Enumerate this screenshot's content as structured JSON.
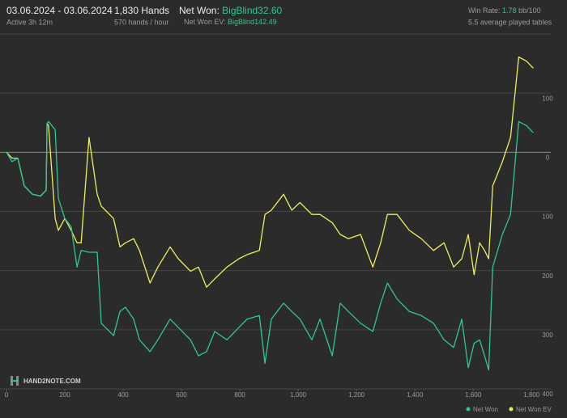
{
  "header": {
    "date_range": "03.06.2024 - 03.06.2024",
    "active": "Active 3h 12m",
    "hands": "1,830 Hands",
    "hands_per_hour": "570 hands / hour",
    "net_won_label": "Net Won:",
    "net_won_value": "BigBlind32.60",
    "net_won_ev_label": "Net Won  EV:",
    "net_won_ev_value": "BigBlind142.49",
    "win_rate_label": "Win Rate:",
    "win_rate_value": "1.78",
    "win_rate_unit": "bb/100",
    "tables": "5.5 average played tables",
    "watermark": "HAND2NOTE.COM"
  },
  "chart_data": {
    "type": "line",
    "x": [
      0,
      19,
      39,
      61,
      89,
      117,
      136,
      139,
      144,
      167,
      178,
      200,
      222,
      242,
      256,
      283,
      311,
      325,
      367,
      389,
      408,
      436,
      456,
      492,
      519,
      561,
      589,
      631,
      658,
      686,
      714,
      756,
      797,
      825,
      867,
      886,
      908,
      950,
      978,
      1006,
      1047,
      1075,
      1117,
      1144,
      1172,
      1214,
      1256,
      1283,
      1306,
      1339,
      1381,
      1422,
      1464,
      1500,
      1533,
      1561,
      1583,
      1603,
      1622,
      1639,
      1653,
      1667,
      1700,
      1728,
      1756,
      1783,
      1806
    ],
    "series": [
      {
        "name": "Net Won",
        "color": "#2fc98c",
        "values": [
          0,
          -16,
          -10,
          -57,
          -71,
          -74,
          -64,
          49,
          52,
          38,
          -78,
          -112,
          -126,
          -194,
          -166,
          -169,
          -169,
          -289,
          -310,
          -269,
          -262,
          -282,
          -317,
          -337,
          -317,
          -282,
          -296,
          -317,
          -344,
          -337,
          -303,
          -317,
          -296,
          -282,
          -276,
          -357,
          -282,
          -255,
          -269,
          -282,
          -317,
          -282,
          -344,
          -255,
          -269,
          -289,
          -303,
          -255,
          -221,
          -248,
          -269,
          -276,
          -289,
          -317,
          -330,
          -282,
          -364,
          -323,
          -317,
          -344,
          -368,
          -194,
          -139,
          -105,
          52,
          45,
          33
        ]
      },
      {
        "name": "Net Won  EV",
        "color": "#eeee5e",
        "values": [
          0,
          -10,
          -10,
          -57,
          -71,
          -74,
          -64,
          49,
          45,
          -112,
          -132,
          -112,
          -132,
          -153,
          -153,
          25,
          -71,
          -91,
          -112,
          -160,
          -153,
          -146,
          -166,
          -221,
          -194,
          -160,
          -180,
          -201,
          -194,
          -228,
          -214,
          -194,
          -180,
          -173,
          -166,
          -105,
          -98,
          -71,
          -98,
          -85,
          -105,
          -105,
          -119,
          -139,
          -146,
          -139,
          -194,
          -153,
          -105,
          -105,
          -132,
          -146,
          -166,
          -153,
          -194,
          -180,
          -139,
          -207,
          -153,
          -166,
          -180,
          -57,
          -16,
          25,
          161,
          154,
          142
        ]
      }
    ],
    "xlim": [
      0,
      1830
    ],
    "xticks": [
      0,
      200,
      400,
      600,
      800,
      {
        "value": 1000,
        "label": "1,000"
      },
      {
        "value": 1200,
        "label": "1,200"
      },
      {
        "value": 1400,
        "label": "1,400"
      },
      {
        "value": 1600,
        "label": "1,600"
      },
      {
        "value": 1800,
        "label": "1,800"
      }
    ],
    "ylim": [
      -400,
      200
    ],
    "yticks": [
      {
        "value": -400,
        "label": "400"
      },
      {
        "value": -300,
        "label": "300"
      },
      {
        "value": -200,
        "label": "200"
      },
      {
        "value": -100,
        "label": "100"
      },
      0,
      100
    ],
    "grid": true
  }
}
